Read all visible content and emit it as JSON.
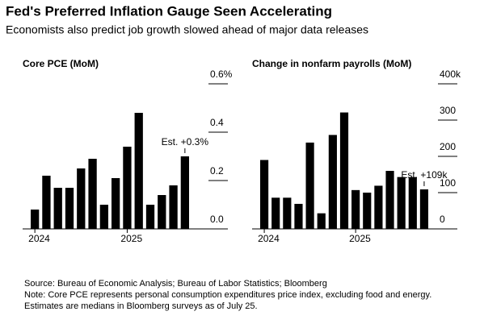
{
  "title": "Fed's Preferred Inflation Gauge Seen Accelerating",
  "subtitle": "Economists also predict job growth slowed ahead of major data releases",
  "notes": [
    "Source: Bureau of Economic Analysis; Bureau of Labor Statistics; Bloomberg",
    "Note: Core PCE represents personal consumption expenditures price index, excluding food and energy.",
    "Estimates are medians in Bloomberg surveys as of July 25."
  ],
  "chart_data": [
    {
      "type": "bar",
      "title": "Core PCE (MoM)",
      "color": "#000000",
      "categories": [
        "2024",
        null,
        null,
        null,
        null,
        null,
        null,
        null,
        "2025",
        null,
        null,
        null,
        null,
        null
      ],
      "values": [
        0.08,
        0.22,
        0.17,
        0.17,
        0.25,
        0.29,
        0.1,
        0.21,
        0.34,
        0.48,
        0.1,
        0.14,
        0.18,
        0.3
      ],
      "ylim": [
        0,
        0.6
      ],
      "yticks": [
        {
          "value": 0,
          "label": "0.0"
        },
        0.2,
        0.4,
        {
          "value": 0.6,
          "label": "0.6%"
        }
      ],
      "annotation": "Est. +0.3%"
    },
    {
      "type": "bar",
      "title": "Change in nonfarm payrolls (MoM)",
      "color": "#000000",
      "categories": [
        "2024",
        null,
        null,
        null,
        null,
        null,
        null,
        null,
        "2025",
        null,
        null,
        null,
        null,
        null,
        null
      ],
      "values": [
        190,
        86,
        86,
        69,
        238,
        43,
        259,
        321,
        107,
        100,
        119,
        160,
        143,
        143,
        109
      ],
      "ylim": [
        0,
        400
      ],
      "yticks": [
        0,
        100,
        200,
        300,
        {
          "value": 400,
          "label": "400k"
        }
      ],
      "annotation": "Est. +109k"
    }
  ]
}
